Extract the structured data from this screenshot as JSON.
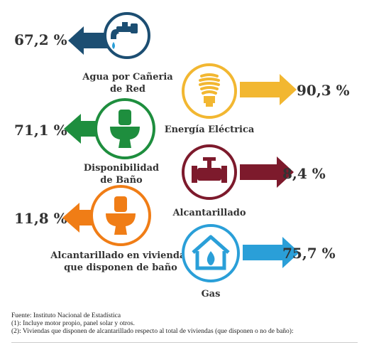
{
  "indicators": [
    {
      "label_1": "Agua por Cañeria",
      "label_2": "de Red",
      "value": "67,2 %",
      "color": "#1c4e72",
      "icon": "faucet-icon"
    },
    {
      "label_1": "Energía Eléctrica",
      "label_2": "",
      "value": "90,3 %",
      "color": "#f2b731",
      "icon": "light-bulb-icon"
    },
    {
      "label_1": "Disponibilidad",
      "label_2": "de Baño",
      "value": "71,1 %",
      "color": "#1e8e3e",
      "icon": "toilet-icon"
    },
    {
      "label_1": "Alcantarillado",
      "label_2": "",
      "value": "8,4 %",
      "color": "#7d1a2c",
      "icon": "pipe-valve-icon"
    },
    {
      "label_1": "Alcantarillado en viviendas",
      "label_2": "que disponen de baño",
      "value": "11,8 %",
      "color": "#f07d16",
      "icon": "toilet-icon"
    },
    {
      "label_1": "Gas",
      "label_2": "",
      "value": "75,7 %",
      "color": "#2a9fd8",
      "icon": "house-flame-icon"
    }
  ],
  "footer": {
    "line1": "Fuente: Instituto Nacional de Estadística",
    "line2": "(1): Incluye motor propio, panel solar y otros.",
    "line3": "(2): Viviendas que disponen de alcantarillado respecto al total de viviendas (que disponen o no de baño):"
  }
}
